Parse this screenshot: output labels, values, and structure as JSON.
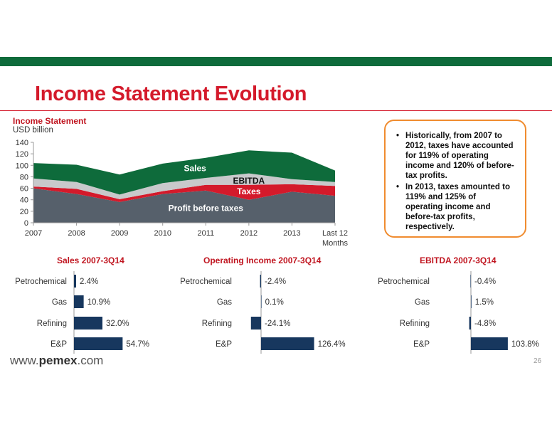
{
  "title": "Income Statement Evolution",
  "main_chart": {
    "heading": "Income Statement",
    "unit": "USD billion"
  },
  "callout": {
    "bullets": [
      "Historically, from 2007 to 2012, taxes have accounted for 119% of operating income and 120% of before-tax profits.",
      "In 2013, taxes amounted to 119% and 125% of operating income and before-tax profits, respectively."
    ]
  },
  "footer": {
    "url_prefix": "www.",
    "url_brand": "pemex",
    "url_suffix": ".com",
    "page_number": "26"
  },
  "chart_data": [
    {
      "type": "area",
      "title": "Income Statement",
      "ylabel": "USD billion",
      "ylim": [
        0,
        140
      ],
      "yticks": [
        0,
        20,
        40,
        60,
        80,
        100,
        120,
        140
      ],
      "categories": [
        "2007",
        "2008",
        "2009",
        "2010",
        "2011",
        "2012",
        "2013",
        "Last 12 Months"
      ],
      "stacked": true,
      "series": [
        {
          "name": "Profit before taxes",
          "color": "#56606b",
          "values": [
            60,
            50,
            36,
            50,
            56,
            40,
            54,
            47
          ]
        },
        {
          "name": "Taxes",
          "color": "#d41a2b",
          "values": [
            3,
            9,
            5,
            5,
            10,
            26,
            13,
            17
          ]
        },
        {
          "name": "EBITDA",
          "color": "#c8c9cb",
          "values": [
            14,
            12,
            8,
            14,
            12,
            20,
            9,
            7
          ]
        },
        {
          "name": "Sales",
          "color": "#0e6b3b",
          "values": [
            27,
            30,
            35,
            34,
            35,
            40,
            46,
            20
          ]
        }
      ],
      "grid": false
    },
    {
      "type": "bar",
      "orientation": "horizontal",
      "title": "Sales 2007-3Q14",
      "categories": [
        "Petrochemical",
        "Gas",
        "Refining",
        "E&P"
      ],
      "values": [
        2.4,
        10.9,
        32.0,
        54.7
      ],
      "labels": [
        "2.4%",
        "10.9%",
        "32.0%",
        "54.7%"
      ],
      "color": "#17375e"
    },
    {
      "type": "bar",
      "orientation": "horizontal",
      "title": "Operating Income 2007-3Q14",
      "categories": [
        "Petrochemical",
        "Gas",
        "Refining",
        "E&P"
      ],
      "values": [
        -2.4,
        0.1,
        -24.1,
        126.4
      ],
      "labels": [
        "-2.4%",
        "0.1%",
        "-24.1%",
        "126.4%"
      ],
      "color": "#17375e"
    },
    {
      "type": "bar",
      "orientation": "horizontal",
      "title": "EBITDA 2007-3Q14",
      "categories": [
        "Petrochemical",
        "Gas",
        "Refining",
        "E&P"
      ],
      "values": [
        -0.4,
        1.5,
        -4.8,
        103.8
      ],
      "labels": [
        "-0.4%",
        "1.5%",
        "-4.8%",
        "103.8%"
      ],
      "color": "#17375e"
    }
  ]
}
